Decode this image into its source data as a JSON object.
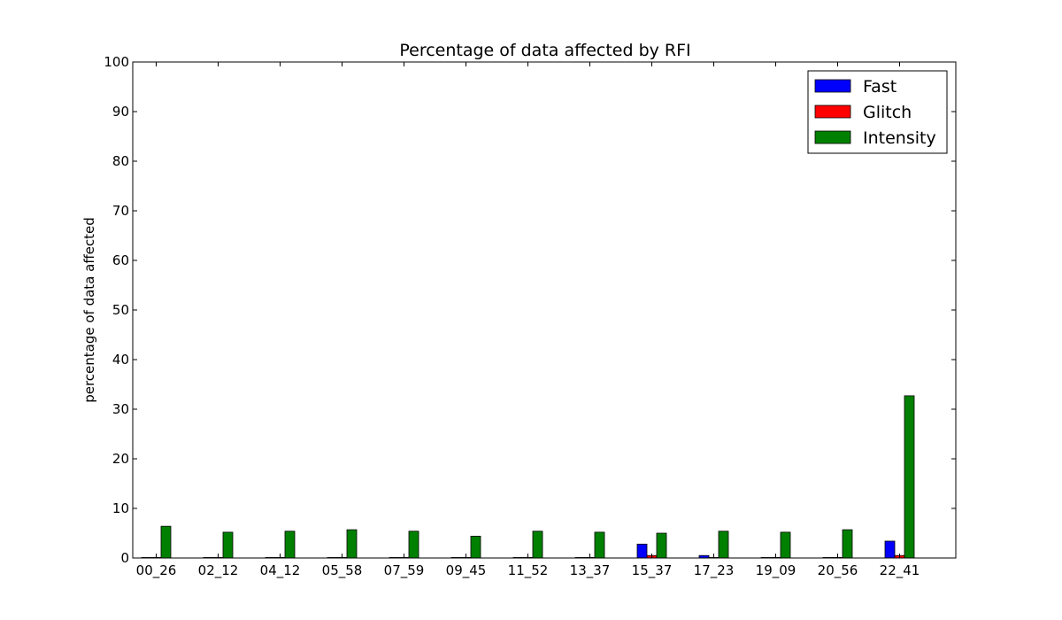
{
  "chart_data": {
    "type": "bar",
    "title": "Percentage of data affected by RFI",
    "xlabel": "",
    "ylabel": "percentage of data affected",
    "ylim": [
      0,
      100
    ],
    "yticks": [
      0,
      10,
      20,
      30,
      40,
      50,
      60,
      70,
      80,
      90,
      100
    ],
    "grid": false,
    "legend_position": "top-right",
    "categories": [
      "00_26",
      "02_12",
      "04_12",
      "05_58",
      "07_59",
      "09_45",
      "11_52",
      "13_37",
      "15_37",
      "17_23",
      "19_09",
      "20_56",
      "22_41"
    ],
    "series": [
      {
        "name": "Fast",
        "color": "#0000ff",
        "values": [
          0.1,
          0.1,
          0.1,
          0.1,
          0.1,
          0.1,
          0.1,
          0.1,
          2.8,
          0.5,
          0.1,
          0.1,
          3.4
        ]
      },
      {
        "name": "Glitch",
        "color": "#ff0000",
        "values": [
          0.1,
          0.1,
          0.1,
          0.1,
          0.1,
          0.1,
          0.1,
          0.1,
          0.5,
          0.1,
          0.1,
          0.1,
          0.5
        ]
      },
      {
        "name": "Intensity",
        "color": "#008000",
        "values": [
          6.4,
          5.2,
          5.4,
          5.7,
          5.4,
          4.4,
          5.4,
          5.2,
          5.0,
          5.4,
          5.2,
          5.7,
          32.7
        ]
      }
    ]
  }
}
